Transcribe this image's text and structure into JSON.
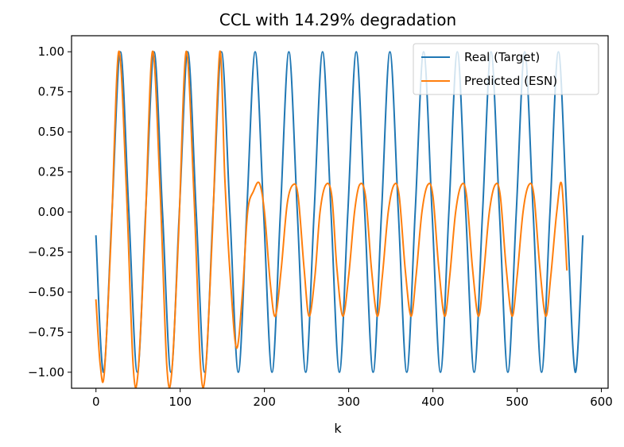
{
  "chart_data": {
    "type": "line",
    "title": "CCL with 14.29% degradation",
    "xlabel": "k",
    "ylabel": "",
    "xlim": [
      -29,
      608
    ],
    "ylim": [
      -1.1,
      1.1
    ],
    "xticks": [
      0,
      100,
      200,
      300,
      400,
      500,
      600
    ],
    "xtick_labels": [
      "0",
      "100",
      "200",
      "300",
      "400",
      "500",
      "600"
    ],
    "yticks": [
      -1.0,
      -0.75,
      -0.5,
      -0.25,
      0.0,
      0.25,
      0.5,
      0.75,
      1.0
    ],
    "ytick_labels": [
      "−1.00",
      "−0.75",
      "−0.50",
      "−0.25",
      "0.00",
      "0.25",
      "0.50",
      "0.75",
      "1.00"
    ],
    "grid": false,
    "legend_position": "top-right",
    "series": [
      {
        "name": "Real (Target)",
        "color": "#1f77b4",
        "x": [
          0,
          9,
          19,
          29,
          39,
          49,
          59,
          69,
          79,
          89,
          99,
          109,
          119,
          129,
          139,
          149,
          159,
          169,
          179,
          189,
          199,
          209,
          219,
          229,
          239,
          249,
          259,
          269,
          279,
          289,
          299,
          309,
          319,
          329,
          339,
          349,
          359,
          369,
          379,
          389,
          399,
          409,
          419,
          429,
          439,
          449,
          459,
          469,
          479,
          489,
          499,
          509,
          519,
          529,
          539,
          549,
          559,
          569,
          578
        ],
        "y": [
          -0.15,
          -1.0,
          0.0,
          1.0,
          0.0,
          -1.0,
          0.0,
          1.0,
          0.0,
          -1.0,
          0.0,
          1.0,
          0.0,
          -1.0,
          0.0,
          1.0,
          0.0,
          -1.0,
          0.0,
          1.0,
          0.0,
          -1.0,
          0.0,
          1.0,
          0.0,
          -1.0,
          0.0,
          1.0,
          0.0,
          -1.0,
          0.0,
          1.0,
          0.0,
          -1.0,
          0.0,
          1.0,
          0.0,
          -1.0,
          0.0,
          1.0,
          0.0,
          -1.0,
          0.0,
          1.0,
          0.0,
          -1.0,
          0.0,
          1.0,
          0.0,
          -1.0,
          0.0,
          1.0,
          0.0,
          -1.0,
          0.0,
          1.0,
          0.0,
          -1.0,
          -0.15
        ]
      },
      {
        "name": "Predicted (ESN)",
        "color": "#ff7f0e",
        "x": [
          0,
          5,
          10,
          18,
          27,
          36,
          44,
          50,
          58,
          67,
          76,
          84,
          90,
          98,
          107,
          116,
          124,
          130,
          138,
          147,
          153,
          160,
          167,
          174,
          180,
          187,
          194,
          200,
          207,
          213,
          220,
          227,
          234,
          240,
          247,
          253,
          260,
          266,
          273,
          280,
          286,
          293,
          300,
          307,
          313,
          320,
          327,
          334,
          340,
          347,
          354,
          360,
          367,
          374,
          380,
          387,
          394,
          400,
          407,
          414,
          420,
          427,
          434,
          440,
          447,
          454,
          460,
          467,
          474,
          480,
          487,
          494,
          500,
          507,
          514,
          520,
          527,
          534,
          540,
          547,
          553,
          559
        ],
        "y": [
          -0.55,
          -0.95,
          -1.0,
          -0.15,
          1.0,
          0.15,
          -0.95,
          -1.0,
          -0.15,
          1.0,
          0.15,
          -0.95,
          -1.0,
          -0.15,
          1.0,
          0.15,
          -0.95,
          -1.0,
          -0.15,
          1.0,
          0.2,
          -0.45,
          -0.85,
          -0.5,
          0.0,
          0.13,
          0.18,
          0.0,
          -0.45,
          -0.65,
          -0.35,
          0.05,
          0.17,
          0.1,
          -0.35,
          -0.65,
          -0.4,
          0.0,
          0.17,
          0.1,
          -0.35,
          -0.65,
          -0.4,
          0.0,
          0.17,
          0.1,
          -0.35,
          -0.65,
          -0.4,
          0.0,
          0.17,
          0.1,
          -0.35,
          -0.65,
          -0.4,
          0.0,
          0.17,
          0.1,
          -0.35,
          -0.65,
          -0.4,
          0.0,
          0.17,
          0.1,
          -0.35,
          -0.65,
          -0.4,
          0.0,
          0.17,
          0.1,
          -0.35,
          -0.65,
          -0.4,
          0.0,
          0.17,
          0.1,
          -0.35,
          -0.65,
          -0.4,
          0.0,
          0.17,
          -0.36
        ]
      }
    ]
  }
}
